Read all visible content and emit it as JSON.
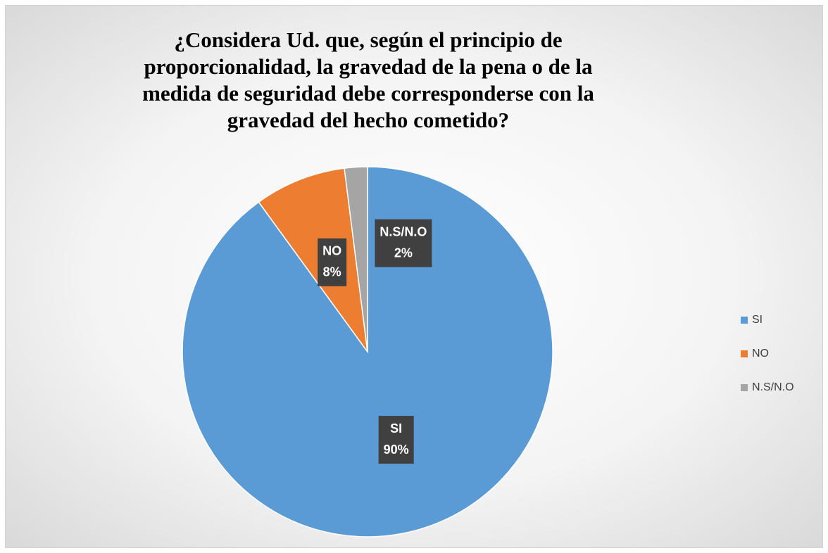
{
  "chart_data": {
    "type": "pie",
    "title": "¿Considera Ud. que, según el principio de proporcionalidad, la gravedad de la pena o de la medida de seguridad debe corresponderse con la gravedad del hecho cometido?",
    "categories": [
      "SI",
      "NO",
      "N.S/N.O"
    ],
    "values": [
      90,
      8,
      2
    ],
    "value_labels": [
      "90%",
      "8%",
      "2%"
    ],
    "colors": [
      "#5b9bd5",
      "#ed7d31",
      "#a5a5a5"
    ],
    "legend": "right"
  }
}
